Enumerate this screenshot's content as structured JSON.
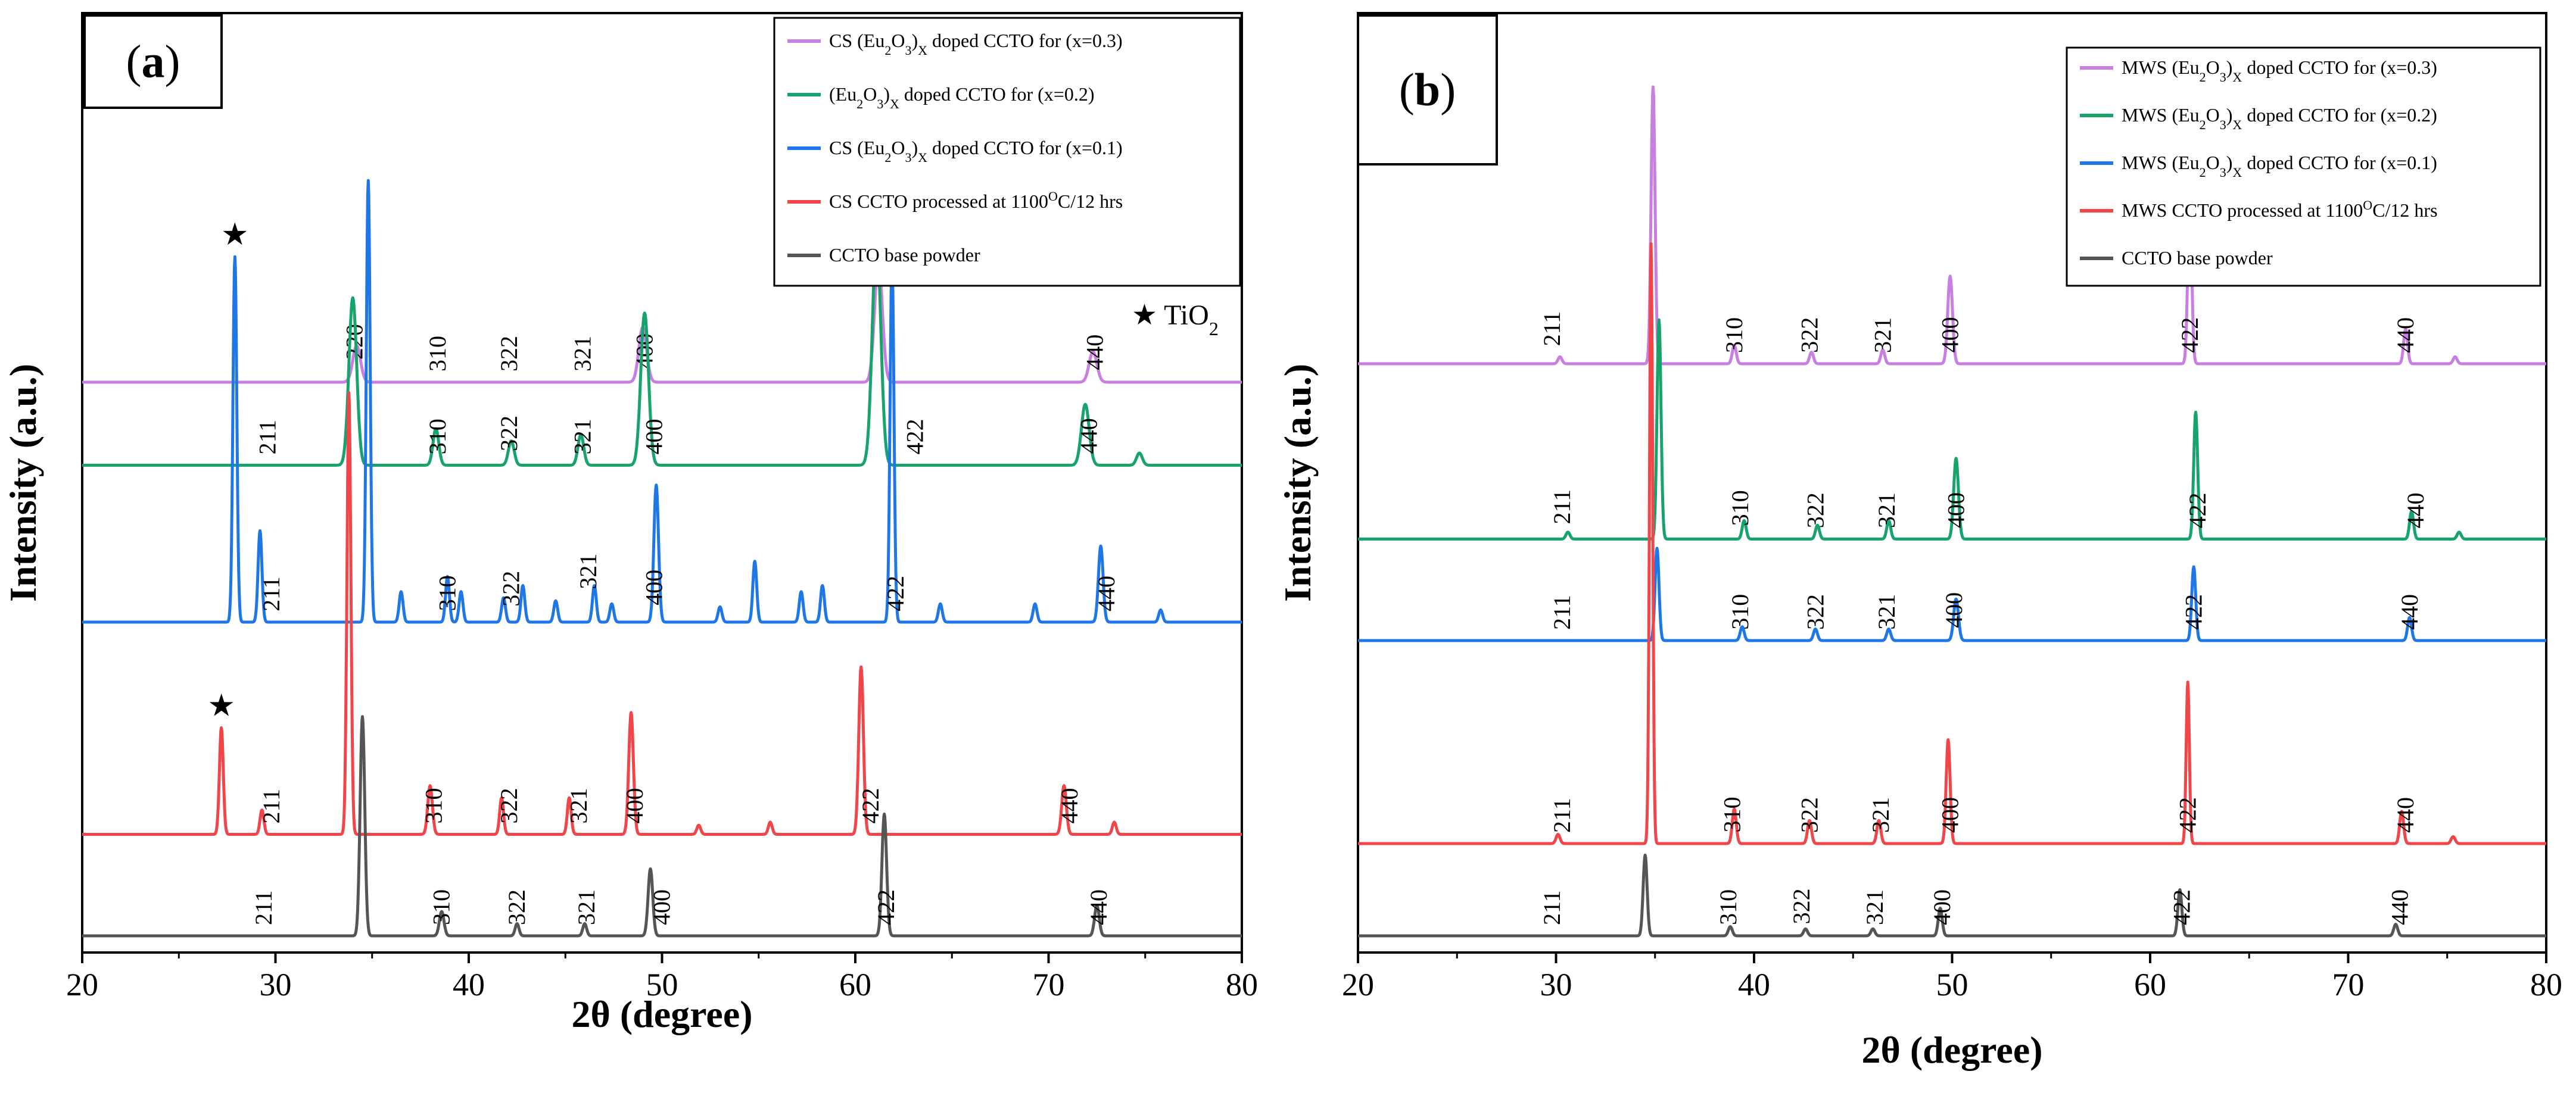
{
  "chart_data": [
    {
      "panel": "(a)",
      "panel_letter": "a",
      "type": "line",
      "xlabel": "2θ (degree)",
      "ylabel": "Intensity (a.u.)",
      "xlim": [
        20,
        80
      ],
      "xticks": [
        "20",
        "30",
        "40",
        "50",
        "60",
        "70",
        "80"
      ],
      "annotation": {
        "symbol": "★",
        "text": "TiO",
        "sub": "2"
      },
      "legend": [
        {
          "pre": "CS (Eu",
          "s1": "2",
          "mid": "O",
          "s2": "3",
          "close": ")",
          "x": "X",
          "post": " doped CCTO for (x=0.3)",
          "color": "#c77fe0"
        },
        {
          "pre": "(Eu",
          "s1": "2",
          "mid": "O",
          "s2": "3",
          "close": ")",
          "x": "X",
          "post": " doped CCTO for (x=0.2)",
          "color": "#17a36b"
        },
        {
          "pre": "CS  (Eu",
          "s1": "2",
          "mid": "O",
          "s2": "3",
          "close": ")",
          "x": "X",
          "post": " doped CCTO for (x=0.1)",
          "color": "#1f77e6"
        },
        {
          "pre": "CS CCTO processed at 1100",
          "sup": "O",
          "post2": "C/12 hrs",
          "color": "#f0464a"
        },
        {
          "pre": "CCTO base powder",
          "color": "#555555"
        }
      ],
      "series": [
        {
          "name": "CS (Eu2O3)x doped CCTO for (x=0.3)",
          "color": "#c77fe0",
          "offset": 0.6,
          "peaks": [
            [
              34.2,
              0.12,
              0.2
            ],
            [
              49.0,
              0.18,
              0.2
            ],
            [
              61.2,
              0.4,
              0.2
            ],
            [
              72.3,
              0.1,
              0.2
            ]
          ],
          "labels": [
            [
              34.5,
              "220"
            ],
            [
              38.8,
              "310"
            ],
            [
              42.5,
              "322"
            ],
            [
              46.3,
              "321"
            ],
            [
              49.5,
              "400"
            ],
            [
              61.3,
              "422"
            ],
            [
              72.8,
              "440"
            ]
          ]
        },
        {
          "name": "(Eu2O3)x doped CCTO for (x=0.2)",
          "color": "#17a36b",
          "offset": 0.51,
          "peaks": [
            [
              34.0,
              0.55,
              0.2
            ],
            [
              38.3,
              0.12,
              0.15
            ],
            [
              42.2,
              0.08,
              0.15
            ],
            [
              45.8,
              0.1,
              0.15
            ],
            [
              49.1,
              0.5,
              0.2
            ],
            [
              61.1,
              0.75,
              0.22
            ],
            [
              71.9,
              0.2,
              0.2
            ],
            [
              74.7,
              0.04,
              0.15
            ]
          ],
          "labels": [
            [
              30.0,
              "211"
            ],
            [
              38.8,
              "310"
            ],
            [
              42.5,
              "322"
            ],
            [
              46.3,
              "321"
            ],
            [
              50.0,
              "400"
            ],
            [
              63.5,
              "422"
            ],
            [
              72.5,
              "440"
            ]
          ]
        },
        {
          "name": "CS (Eu2O3)x doped CCTO for (x=0.1)",
          "color": "#1f77e6",
          "offset": 0.34,
          "peaks": [
            [
              27.9,
              1.2,
              0.1
            ],
            [
              29.2,
              0.3,
              0.1
            ],
            [
              34.8,
              1.45,
              0.1
            ],
            [
              36.5,
              0.1,
              0.1
            ],
            [
              38.9,
              0.15,
              0.1
            ],
            [
              39.6,
              0.1,
              0.1
            ],
            [
              41.8,
              0.08,
              0.1
            ],
            [
              42.8,
              0.12,
              0.1
            ],
            [
              44.5,
              0.07,
              0.1
            ],
            [
              46.5,
              0.12,
              0.1
            ],
            [
              47.4,
              0.06,
              0.1
            ],
            [
              49.7,
              0.45,
              0.12
            ],
            [
              53.0,
              0.05,
              0.1
            ],
            [
              54.8,
              0.2,
              0.1
            ],
            [
              57.2,
              0.1,
              0.1
            ],
            [
              58.3,
              0.12,
              0.1
            ],
            [
              61.9,
              1.2,
              0.1
            ],
            [
              64.4,
              0.06,
              0.1
            ],
            [
              69.3,
              0.06,
              0.1
            ],
            [
              72.7,
              0.25,
              0.12
            ],
            [
              75.8,
              0.04,
              0.1
            ]
          ],
          "labels": [
            [
              30.2,
              "211"
            ],
            [
              39.3,
              "310"
            ],
            [
              42.6,
              "322"
            ],
            [
              46.6,
              "321"
            ],
            [
              50.0,
              "400"
            ],
            [
              62.5,
              "422"
            ],
            [
              73.4,
              "440"
            ]
          ]
        },
        {
          "name": "CS CCTO processed at 1100 OC/12 hrs",
          "color": "#f0464a",
          "offset": 0.11,
          "peaks": [
            [
              27.2,
              0.35,
              0.1
            ],
            [
              29.3,
              0.08,
              0.1
            ],
            [
              33.8,
              1.45,
              0.1
            ],
            [
              38.0,
              0.16,
              0.12
            ],
            [
              41.7,
              0.12,
              0.1
            ],
            [
              45.2,
              0.12,
              0.1
            ],
            [
              48.4,
              0.4,
              0.12
            ],
            [
              51.9,
              0.03,
              0.1
            ],
            [
              55.6,
              0.04,
              0.1
            ],
            [
              60.3,
              0.55,
              0.12
            ],
            [
              70.8,
              0.16,
              0.12
            ],
            [
              73.4,
              0.04,
              0.1
            ]
          ],
          "labels": [
            [
              30.2,
              "211"
            ],
            [
              38.6,
              "310"
            ],
            [
              42.5,
              "322"
            ],
            [
              46.1,
              "321"
            ],
            [
              49.0,
              "400"
            ],
            [
              61.2,
              "422"
            ],
            [
              71.5,
              "440"
            ]
          ]
        },
        {
          "name": "CCTO base powder",
          "color": "#555555",
          "offset": 0.0,
          "peaks": [
            [
              34.5,
              0.72,
              0.12
            ],
            [
              38.6,
              0.08,
              0.12
            ],
            [
              42.5,
              0.04,
              0.1
            ],
            [
              46.0,
              0.04,
              0.1
            ],
            [
              49.4,
              0.22,
              0.12
            ],
            [
              61.5,
              0.4,
              0.12
            ],
            [
              72.5,
              0.1,
              0.12
            ]
          ],
          "labels": [
            [
              29.8,
              "211"
            ],
            [
              39.0,
              "310"
            ],
            [
              42.9,
              "322"
            ],
            [
              46.5,
              "321"
            ],
            [
              50.4,
              "400"
            ],
            [
              62.0,
              "422"
            ],
            [
              73.0,
              "440"
            ]
          ]
        }
      ],
      "stars": [
        {
          "x": 27.9,
          "series": 2
        },
        {
          "x": 27.2,
          "series": 3
        }
      ]
    },
    {
      "panel": "(b)",
      "panel_letter": "b",
      "type": "line",
      "xlabel": "2θ (degree)",
      "ylabel": "Intensity (a.u.)",
      "xlim": [
        20,
        80
      ],
      "xticks": [
        "20",
        "30",
        "40",
        "50",
        "60",
        "70",
        "80"
      ],
      "legend": [
        {
          "pre": "MWS (Eu",
          "s1": "2",
          "mid": "O",
          "s2": "3",
          "close": ")",
          "x": "X",
          "post": " doped CCTO for (x=0.3)",
          "color": "#c77fe0"
        },
        {
          "pre": "MWS  (Eu",
          "s1": "2",
          "mid": "O",
          "s2": "3",
          "close": ")",
          "x": "X",
          "post": " doped CCTO for (x=0.2)",
          "color": "#17a36b"
        },
        {
          "pre": "MWS  (Eu",
          "s1": "2",
          "mid": "O",
          "s2": "3",
          "close": ")",
          "x": "X",
          "post": " doped CCTO for (x=0.1)",
          "color": "#1f77e6"
        },
        {
          "pre": "MWS CCTO processed at 1100",
          "sup": "O",
          "post2": "C/12 hrs",
          "color": "#f0464a"
        },
        {
          "pre": "CCTO base powder",
          "color": "#555555"
        }
      ],
      "series": [
        {
          "name": "MWS (Eu2O3)x doped CCTO for (x=0.3)",
          "color": "#c77fe0",
          "offset": 0.62,
          "peaks": [
            [
              30.2,
              0.03,
              0.1
            ],
            [
              34.9,
              1.2,
              0.1
            ],
            [
              39.0,
              0.08,
              0.1
            ],
            [
              42.9,
              0.05,
              0.1
            ],
            [
              46.5,
              0.06,
              0.1
            ],
            [
              49.9,
              0.38,
              0.12
            ],
            [
              62.0,
              0.7,
              0.1
            ],
            [
              72.9,
              0.15,
              0.1
            ],
            [
              75.4,
              0.03,
              0.1
            ]
          ],
          "labels": [
            [
              30.2,
              "211"
            ],
            [
              39.4,
              "310"
            ],
            [
              43.2,
              "322"
            ],
            [
              46.9,
              "321"
            ],
            [
              50.3,
              "400"
            ],
            [
              62.4,
              "422"
            ],
            [
              73.3,
              "440"
            ]
          ]
        },
        {
          "name": "MWS (Eu2O3)x doped CCTO for (x=0.2)",
          "color": "#17a36b",
          "offset": 0.43,
          "peaks": [
            [
              30.6,
              0.03,
              0.1
            ],
            [
              35.2,
              0.95,
              0.1
            ],
            [
              39.5,
              0.08,
              0.1
            ],
            [
              43.2,
              0.06,
              0.1
            ],
            [
              46.8,
              0.08,
              0.1
            ],
            [
              50.2,
              0.35,
              0.12
            ],
            [
              62.3,
              0.55,
              0.1
            ],
            [
              73.2,
              0.12,
              0.1
            ],
            [
              75.6,
              0.03,
              0.1
            ]
          ],
          "labels": [
            [
              30.7,
              "211"
            ],
            [
              39.7,
              "310"
            ],
            [
              43.5,
              "322"
            ],
            [
              47.1,
              "321"
            ],
            [
              50.6,
              "400"
            ],
            [
              62.8,
              "422"
            ],
            [
              73.8,
              "440"
            ]
          ]
        },
        {
          "name": "MWS (Eu2O3)x doped CCTO for (x=0.1)",
          "color": "#1f77e6",
          "offset": 0.32,
          "peaks": [
            [
              35.1,
              0.4,
              0.1
            ],
            [
              39.4,
              0.06,
              0.1
            ],
            [
              43.1,
              0.05,
              0.1
            ],
            [
              46.8,
              0.05,
              0.1
            ],
            [
              50.2,
              0.18,
              0.12
            ],
            [
              62.2,
              0.32,
              0.1
            ],
            [
              73.1,
              0.1,
              0.1
            ]
          ],
          "labels": [
            [
              30.7,
              "211"
            ],
            [
              39.7,
              "310"
            ],
            [
              43.5,
              "322"
            ],
            [
              47.1,
              "321"
            ],
            [
              50.5,
              "400"
            ],
            [
              62.6,
              "422"
            ],
            [
              73.5,
              "440"
            ]
          ]
        },
        {
          "name": "MWS CCTO processed at 1100 OC/12 hrs",
          "color": "#f0464a",
          "offset": 0.1,
          "peaks": [
            [
              30.1,
              0.04,
              0.1
            ],
            [
              34.8,
              2.6,
              0.08
            ],
            [
              39.0,
              0.15,
              0.1
            ],
            [
              42.8,
              0.1,
              0.1
            ],
            [
              46.3,
              0.1,
              0.1
            ],
            [
              49.8,
              0.45,
              0.1
            ],
            [
              61.9,
              0.7,
              0.08
            ],
            [
              72.7,
              0.14,
              0.1
            ],
            [
              75.3,
              0.03,
              0.1
            ]
          ],
          "labels": [
            [
              30.7,
              "211"
            ],
            [
              39.3,
              "310"
            ],
            [
              43.2,
              "322"
            ],
            [
              46.8,
              "321"
            ],
            [
              50.3,
              "400"
            ],
            [
              62.3,
              "422"
            ],
            [
              73.3,
              "440"
            ]
          ]
        },
        {
          "name": "CCTO base powder",
          "color": "#555555",
          "offset": 0.0,
          "peaks": [
            [
              34.5,
              0.35,
              0.1
            ],
            [
              38.8,
              0.04,
              0.1
            ],
            [
              42.6,
              0.03,
              0.1
            ],
            [
              46.0,
              0.03,
              0.1
            ],
            [
              49.4,
              0.12,
              0.1
            ],
            [
              61.5,
              0.2,
              0.1
            ],
            [
              72.4,
              0.05,
              0.1
            ]
          ],
          "labels": [
            [
              30.2,
              "211"
            ],
            [
              39.1,
              "310"
            ],
            [
              42.8,
              "322"
            ],
            [
              46.5,
              "321"
            ],
            [
              49.9,
              "400"
            ],
            [
              62.0,
              "422"
            ],
            [
              73.0,
              "440"
            ]
          ]
        }
      ]
    }
  ]
}
